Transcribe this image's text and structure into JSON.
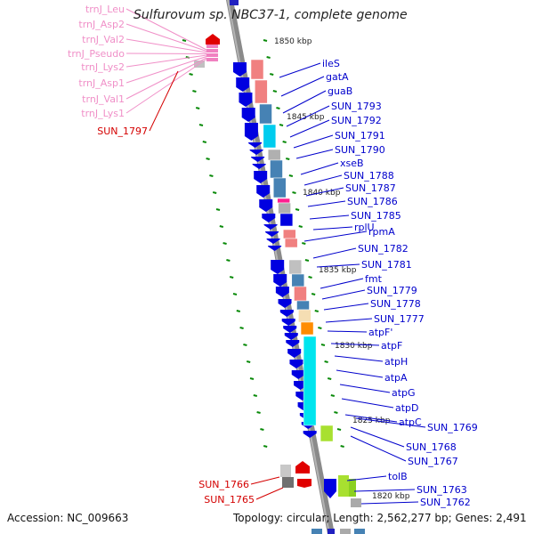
{
  "title": "Sulfurovum sp. NBC37-1, complete genome",
  "accession_text": "Accession: NC_009663",
  "topology_text": "Topology: circular; Length: 2,562,277 bp; Genes: 2,491",
  "colors": {
    "rna_label": "#f090c8",
    "red_label": "#d40000",
    "blue_label": "#0000cc",
    "tick": "#0a8a0a",
    "backbone": "#888888"
  },
  "kbp_ticks": [
    "1850 kbp",
    "1845 kbp",
    "1840 kbp",
    "1835 kbp",
    "1830 kbp",
    "1825 kbp",
    "1820 kbp"
  ],
  "rna_labels": [
    "trnJ_Leu",
    "trnJ_Asp2",
    "trnJ_Val2",
    "trnJ_Pseudo",
    "trnJ_Lys2",
    "trnJ_Asp1",
    "trnJ_Val1",
    "trnJ_Lys1"
  ],
  "left_red_labels": [
    "SUN_1797",
    "SUN_1766",
    "SUN_1765"
  ],
  "gene_labels": [
    "ileS",
    "gatA",
    "guaB",
    "SUN_1793",
    "SUN_1792",
    "SUN_1791",
    "SUN_1790",
    "xseB",
    "SUN_1788",
    "SUN_1787",
    "SUN_1786",
    "SUN_1785",
    "rplU",
    "rpmA",
    "SUN_1782",
    "SUN_1781",
    "fmt",
    "SUN_1779",
    "SUN_1778",
    "SUN_1777",
    "atpF'",
    "atpF",
    "atpH",
    "atpA",
    "atpG",
    "atpD",
    "atpC",
    "SUN_1769",
    "SUN_1768",
    "SUN_1767",
    "tolB",
    "SUN_1763",
    "SUN_1762"
  ]
}
